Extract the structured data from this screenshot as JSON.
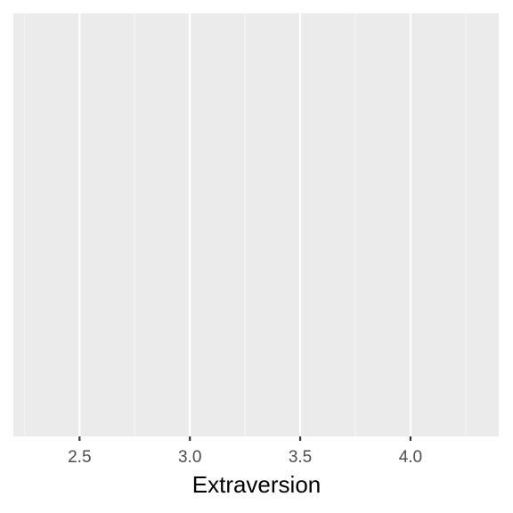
{
  "chart_data": {
    "type": "scatter",
    "title": "",
    "xlabel": "Extraversion",
    "ylabel": "",
    "xlim": [
      2.2,
      4.4
    ],
    "x_ticks": [
      2.5,
      3.0,
      3.5,
      4.0
    ],
    "x_tick_labels": [
      "2.5",
      "3.0",
      "3.5",
      "4.0"
    ],
    "x_minor_ticks": [
      2.25,
      2.75,
      3.25,
      3.75,
      4.25
    ],
    "y_ticks": [],
    "grid": true,
    "legend": "none",
    "series": []
  },
  "colors": {
    "panel_background": "#ebebeb",
    "major_grid": "#ffffff",
    "minor_grid": "#f5f5f5",
    "tick_mark": "#333333",
    "tick_label": "#4d4d4d",
    "axis_title": "#000000"
  }
}
